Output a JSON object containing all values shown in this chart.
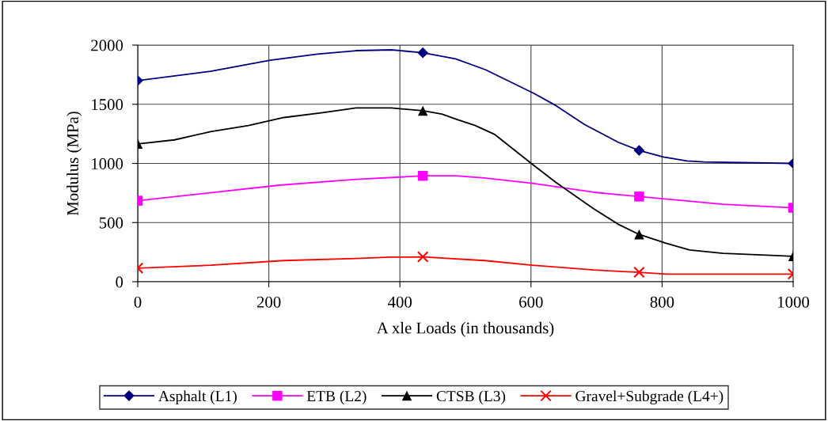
{
  "chart_data": {
    "type": "line",
    "xlabel": "A xle Loads (in thousands)",
    "ylabel": "Modulus (MPa)",
    "series": [
      {
        "name": "Asphalt (L1)",
        "color": "#000080",
        "x": [
          0,
          111,
          202,
          274,
          333,
          387,
          435,
          485,
          531,
          605,
          638,
          682,
          733,
          765,
          802,
          838,
          864,
          1000
        ],
        "values": [
          1700,
          1779,
          1872,
          1924,
          1953,
          1960,
          1935,
          1884,
          1791,
          1590,
          1489,
          1328,
          1179,
          1110,
          1054,
          1021,
          1013,
          1000
        ]
      },
      {
        "type": "scatter",
        "color": "#000080",
        "marker": "diamond",
        "x": [
          0,
          435,
          765,
          1000
        ],
        "values": [
          1700,
          1935,
          1110,
          1000
        ]
      },
      {
        "name": "ETB (L2)",
        "color": "#ff00ff",
        "x": [
          0,
          216,
          333,
          435,
          485,
          529,
          602,
          696,
          765,
          893,
          1000
        ],
        "values": [
          685,
          816,
          865,
          895,
          895,
          877,
          832,
          756,
          720,
          655,
          625
        ]
      },
      {
        "type": "scatter",
        "color": "#ff00ff",
        "marker": "square",
        "x": [
          0,
          435,
          765,
          1000
        ],
        "values": [
          685,
          895,
          720,
          625
        ]
      },
      {
        "name": "CTSB (L3)",
        "color": "#000000",
        "x": [
          0,
          56,
          111,
          169,
          223,
          282,
          333,
          387,
          435,
          464,
          485,
          515,
          544,
          602,
          638,
          696,
          733,
          765,
          806,
          842,
          893,
          944,
          1000
        ],
        "values": [
          1165,
          1199,
          1268,
          1320,
          1388,
          1429,
          1469,
          1469,
          1445,
          1417,
          1376,
          1320,
          1247,
          993,
          840,
          615,
          486,
          400,
          325,
          268,
          240,
          228,
          215
        ]
      },
      {
        "type": "scatter",
        "color": "#000000",
        "marker": "triangle",
        "x": [
          0,
          435,
          765,
          1000
        ],
        "values": [
          1165,
          1445,
          400,
          215
        ]
      },
      {
        "name": "Gravel+Subgrade (L4+)",
        "color": "#ff0000",
        "x": [
          0,
          111,
          223,
          333,
          387,
          435,
          529,
          602,
          696,
          765,
          806,
          1000
        ],
        "values": [
          115,
          139,
          179,
          196,
          208,
          210,
          179,
          139,
          99,
          80,
          65,
          65
        ]
      },
      {
        "type": "scatter",
        "color": "#ff0000",
        "marker": "cross",
        "x": [
          0,
          435,
          765,
          1000
        ],
        "values": [
          115,
          210,
          80,
          65
        ]
      }
    ],
    "xlim": [
      0,
      1000
    ],
    "xticks": [
      0,
      200,
      400,
      600,
      800,
      1000
    ],
    "ylim": [
      0,
      2000
    ],
    "yticks": [
      0,
      500,
      1000,
      1500,
      2000
    ],
    "grid": true,
    "legend": "bottom",
    "line_style": "solid"
  }
}
